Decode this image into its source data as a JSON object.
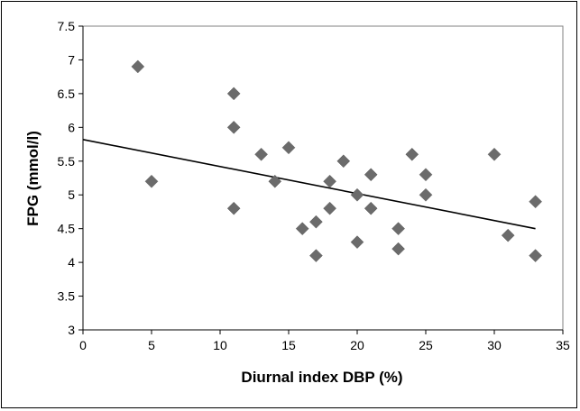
{
  "chart_data": {
    "type": "scatter",
    "title": "",
    "xlabel": "Diurnal index DBP (%)",
    "ylabel": "FPG (mmol/l)",
    "xlim": [
      0,
      35
    ],
    "ylim": [
      3,
      7.5
    ],
    "x_ticks": [
      0,
      5,
      10,
      15,
      20,
      25,
      30,
      35
    ],
    "x_tick_labels": [
      "0",
      "5",
      "10",
      "15",
      "20",
      "25",
      "30",
      "35"
    ],
    "y_ticks": [
      3,
      3.5,
      4,
      4.5,
      5,
      5.5,
      6,
      6.5,
      7,
      7.5
    ],
    "y_tick_labels": [
      "3",
      "3.5",
      "4",
      "4.5",
      "5",
      "5.5",
      "6",
      "6.5",
      "7",
      "7.5"
    ],
    "grid": false,
    "legend": "none",
    "marker_color": "#6b6b6b",
    "line_color": "#000000",
    "points": [
      {
        "x": 4,
        "y": 6.9
      },
      {
        "x": 5,
        "y": 5.2
      },
      {
        "x": 11,
        "y": 6.5
      },
      {
        "x": 11,
        "y": 6.0
      },
      {
        "x": 11,
        "y": 4.8
      },
      {
        "x": 13,
        "y": 5.6
      },
      {
        "x": 14,
        "y": 5.2
      },
      {
        "x": 15,
        "y": 5.7
      },
      {
        "x": 16,
        "y": 4.5
      },
      {
        "x": 17,
        "y": 4.6
      },
      {
        "x": 17,
        "y": 4.1
      },
      {
        "x": 18,
        "y": 5.2
      },
      {
        "x": 18,
        "y": 4.8
      },
      {
        "x": 19,
        "y": 5.5
      },
      {
        "x": 20,
        "y": 5.0
      },
      {
        "x": 20,
        "y": 4.3
      },
      {
        "x": 21,
        "y": 5.3
      },
      {
        "x": 21,
        "y": 4.8
      },
      {
        "x": 23,
        "y": 4.5
      },
      {
        "x": 23,
        "y": 4.2
      },
      {
        "x": 24,
        "y": 5.6
      },
      {
        "x": 25,
        "y": 5.3
      },
      {
        "x": 25,
        "y": 5.0
      },
      {
        "x": 30,
        "y": 5.6
      },
      {
        "x": 31,
        "y": 4.4
      },
      {
        "x": 33,
        "y": 4.9
      },
      {
        "x": 33,
        "y": 4.1
      }
    ],
    "trendline": {
      "x": [
        0,
        33
      ],
      "y": [
        5.82,
        4.5
      ]
    }
  }
}
